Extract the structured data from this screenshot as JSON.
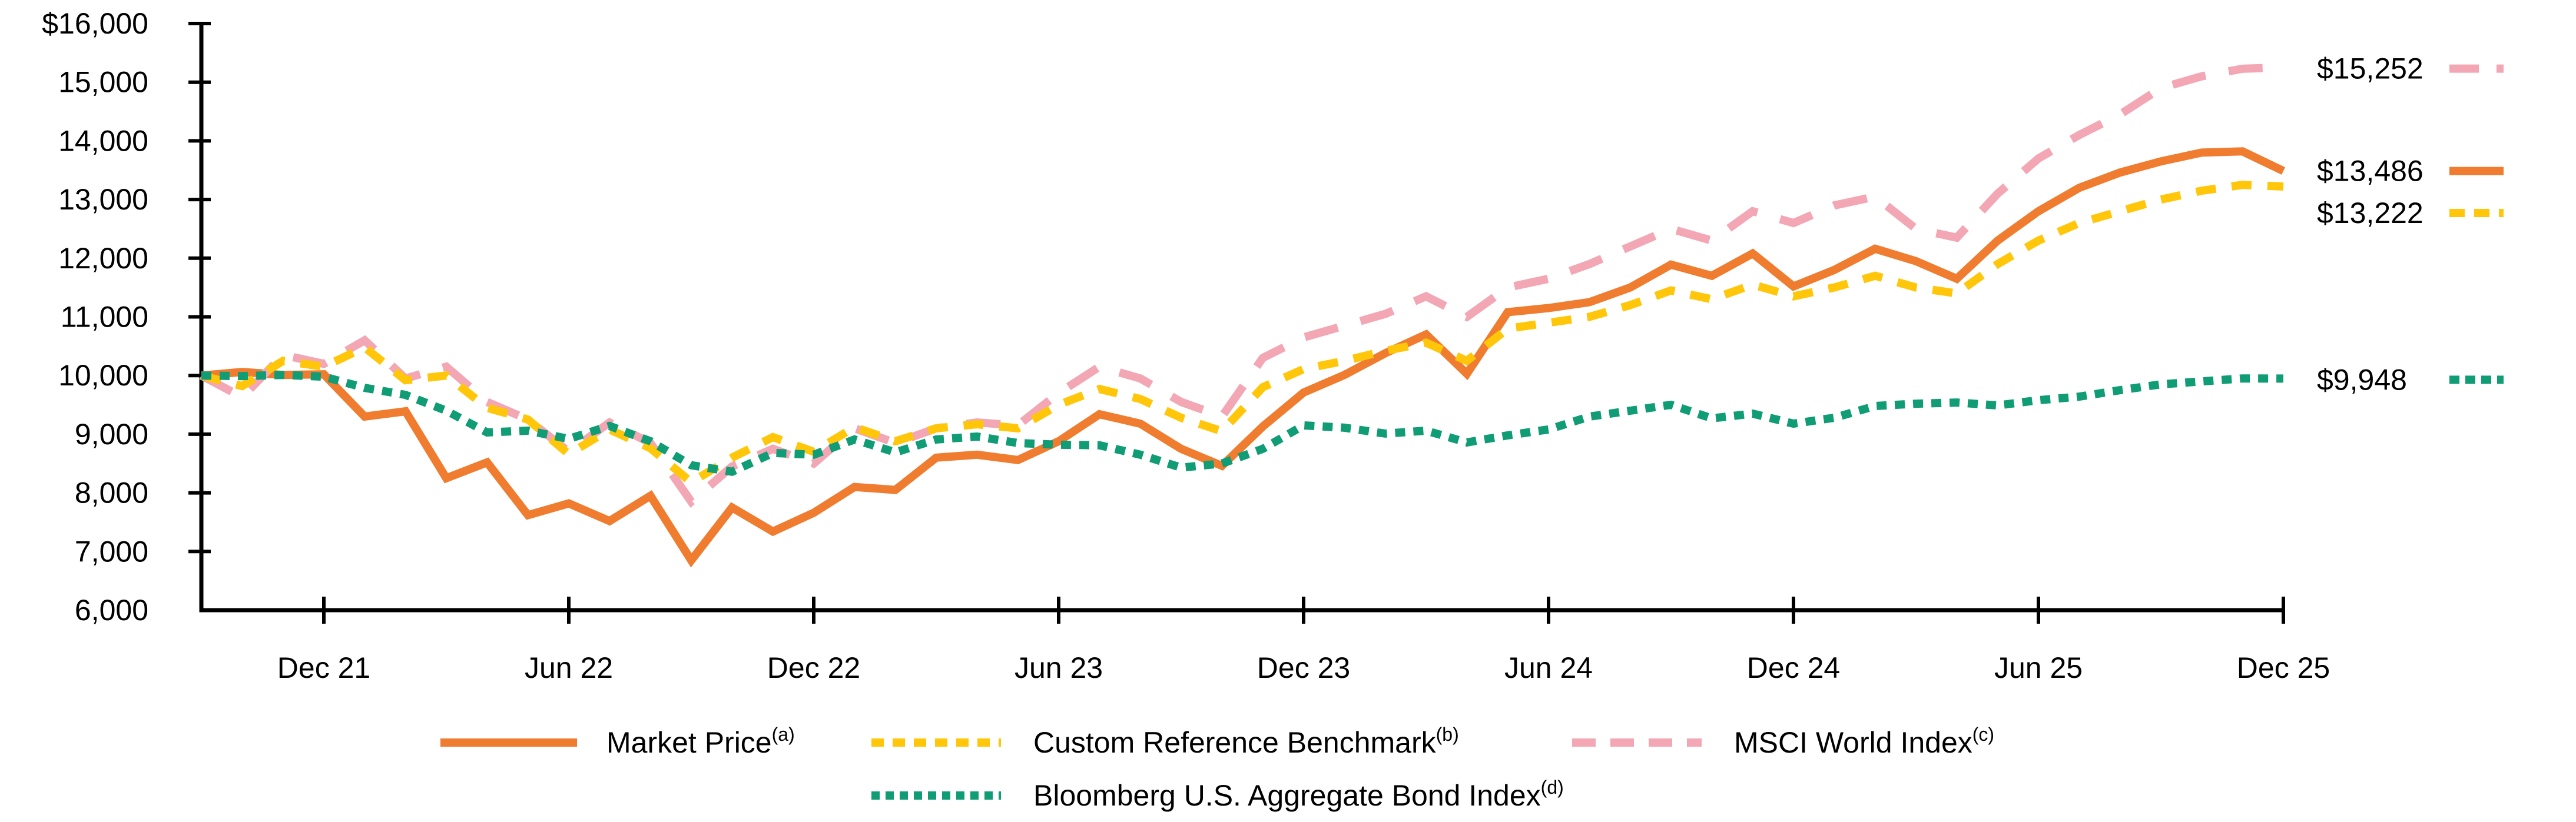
{
  "chart_data": {
    "type": "line",
    "title": "",
    "xlabel": "",
    "ylabel": "",
    "ylim": [
      6000,
      16000
    ],
    "grid": false,
    "legend_position": "bottom",
    "x": [
      "Sep 21",
      "Oct 21",
      "Nov 21",
      "Dec 21",
      "Jan 22",
      "Feb 22",
      "Mar 22",
      "Apr 22",
      "May 22",
      "Jun 22",
      "Jul 22",
      "Aug 22",
      "Sep 22",
      "Oct 22",
      "Nov 22",
      "Dec 22",
      "Jan 23",
      "Feb 23",
      "Mar 23",
      "Apr 23",
      "May 23",
      "Jun 23",
      "Jul 23",
      "Aug 23",
      "Sep 23",
      "Oct 23",
      "Nov 23",
      "Dec 23",
      "Jan 24",
      "Feb 24",
      "Mar 24",
      "Apr 24",
      "May 24",
      "Jun 24",
      "Jul 24",
      "Aug 24",
      "Sep 24",
      "Oct 24",
      "Nov 24",
      "Dec 24",
      "Jan 25",
      "Feb 25",
      "Mar 25",
      "Apr 25",
      "May 25",
      "Jun 25",
      "Jul 25",
      "Aug 25",
      "Sep 25",
      "Oct 25",
      "Nov 25",
      "Dec 25"
    ],
    "x_tick_labels": [
      "Dec 21",
      "Jun 22",
      "Dec 22",
      "Jun 23",
      "Dec 23",
      "Jun 24",
      "Dec 24",
      "Jun 25",
      "Dec 25"
    ],
    "x_tick_indices": [
      3,
      9,
      15,
      21,
      27,
      33,
      39,
      45,
      51
    ],
    "y_ticks": [
      16000,
      15000,
      14000,
      13000,
      12000,
      11000,
      10000,
      9000,
      8000,
      7000,
      6000
    ],
    "y_tick_labels": [
      "$16,000",
      "15,000",
      "14,000",
      "13,000",
      "12,000",
      "11,000",
      "10,000",
      "9,000",
      "8,000",
      "7,000",
      "6,000"
    ],
    "series": [
      {
        "id": "market-price",
        "name": "Market Price",
        "superscript": "(a)",
        "color": "#EF7C2F",
        "style": "solid",
        "end_label": "$13,486",
        "end_value": 13486,
        "values": [
          10000,
          10060,
          10010,
          10020,
          9300,
          9390,
          8250,
          8520,
          7620,
          7820,
          7520,
          7950,
          6850,
          7750,
          7340,
          7660,
          8100,
          8050,
          8600,
          8650,
          8560,
          8880,
          9340,
          9180,
          8750,
          8460,
          9130,
          9710,
          10010,
          10380,
          10700,
          10030,
          11080,
          11150,
          11250,
          11500,
          11890,
          11700,
          12080,
          11520,
          11800,
          12160,
          11950,
          11650,
          12300,
          12800,
          13200,
          13460,
          13650,
          13800,
          13820,
          13486
        ]
      },
      {
        "id": "custom-reference-benchmark",
        "name": "Custom Reference Benchmark",
        "superscript": "(b)",
        "color": "#FFC60A",
        "style": "dash-medium",
        "end_label": "$13,222",
        "end_value": 13222,
        "values": [
          10000,
          9820,
          10250,
          10150,
          10480,
          9920,
          10000,
          9450,
          9250,
          8660,
          9080,
          8760,
          8180,
          8600,
          8950,
          8700,
          9120,
          8880,
          9100,
          9170,
          9100,
          9500,
          9770,
          9600,
          9280,
          9050,
          9800,
          10110,
          10250,
          10420,
          10560,
          10250,
          10800,
          10900,
          11000,
          11200,
          11450,
          11300,
          11550,
          11350,
          11500,
          11700,
          11500,
          11400,
          11900,
          12300,
          12600,
          12800,
          13000,
          13150,
          13250,
          13222
        ]
      },
      {
        "id": "msci-world-index",
        "name": "MSCI World Index",
        "superscript": "(c)",
        "color": "#F3A6B3",
        "style": "dash-long",
        "end_label": "$15,252",
        "end_value": 15252,
        "values": [
          10000,
          9630,
          10350,
          10200,
          10600,
          9950,
          10150,
          9550,
          9250,
          8700,
          9200,
          8850,
          7850,
          8450,
          8750,
          8500,
          9100,
          8850,
          9100,
          9200,
          9150,
          9700,
          10150,
          9950,
          9550,
          9300,
          10300,
          10650,
          10850,
          11050,
          11350,
          11000,
          11500,
          11650,
          11900,
          12200,
          12500,
          12300,
          12800,
          12600,
          12900,
          13050,
          12500,
          12350,
          13100,
          13700,
          14100,
          14450,
          14900,
          15100,
          15230,
          15252
        ]
      },
      {
        "id": "bloomberg-us-aggregate-bond-index",
        "name": "Bloomberg U.S. Aggregate Bond Index",
        "superscript": "(d)",
        "color": "#109C74",
        "style": "dot",
        "end_label": "$9,948",
        "end_value": 9948,
        "values": [
          10000,
          9990,
          10010,
          9980,
          9790,
          9670,
          9400,
          9030,
          9060,
          8920,
          9140,
          8880,
          8470,
          8360,
          8680,
          8650,
          8910,
          8690,
          8910,
          8960,
          8850,
          8820,
          8810,
          8650,
          8430,
          8500,
          8750,
          9150,
          9110,
          9010,
          9060,
          8860,
          8980,
          9080,
          9300,
          9400,
          9500,
          9270,
          9350,
          9180,
          9280,
          9480,
          9520,
          9540,
          9490,
          9580,
          9640,
          9750,
          9850,
          9900,
          9950,
          9948
        ]
      }
    ],
    "colors": {
      "axis": "#000000",
      "text": "#000000",
      "background": "#ffffff"
    }
  }
}
